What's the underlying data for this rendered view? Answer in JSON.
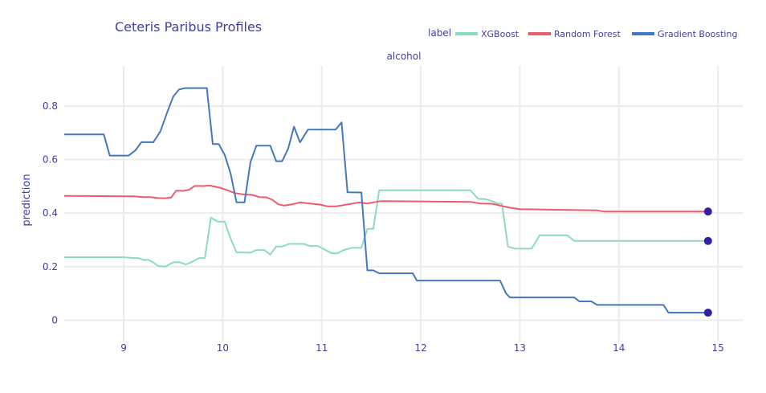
{
  "chart_data": {
    "type": "line",
    "title": "Ceteris Paribus Profiles",
    "panel_title": "alcohol",
    "xlabel": "",
    "ylabel": "prediction",
    "legend_title": "label",
    "legend_position": "top-right",
    "xlim": [
      8.4,
      15.25
    ],
    "ylim": [
      -0.08,
      0.95
    ],
    "x_ticks": [
      9,
      10,
      11,
      12,
      13,
      14,
      15
    ],
    "x_tick_labels": [
      "9",
      "10",
      "11",
      "12",
      "13",
      "14",
      "15"
    ],
    "y_ticks": [
      0,
      0.2,
      0.4,
      0.6,
      0.8
    ],
    "y_tick_labels": [
      "0",
      "0.2",
      "0.4",
      "0.6",
      "0.8"
    ],
    "grid": true,
    "colors": {
      "text": "#3f3f9f",
      "grid": "#ececec",
      "marker": "#371ea3"
    },
    "series": [
      {
        "name": "XGBoost",
        "color": "#8bdcbe",
        "points": [
          [
            8.4,
            0.235
          ],
          [
            8.8,
            0.235
          ],
          [
            9.0,
            0.235
          ],
          [
            9.1,
            0.232
          ],
          [
            9.15,
            0.232
          ],
          [
            9.2,
            0.225
          ],
          [
            9.25,
            0.225
          ],
          [
            9.3,
            0.215
          ],
          [
            9.35,
            0.202
          ],
          [
            9.42,
            0.2
          ],
          [
            9.5,
            0.216
          ],
          [
            9.57,
            0.216
          ],
          [
            9.63,
            0.208
          ],
          [
            9.7,
            0.22
          ],
          [
            9.76,
            0.232
          ],
          [
            9.82,
            0.232
          ],
          [
            9.88,
            0.383
          ],
          [
            9.95,
            0.368
          ],
          [
            10.02,
            0.368
          ],
          [
            10.08,
            0.305
          ],
          [
            10.14,
            0.253
          ],
          [
            10.2,
            0.253
          ],
          [
            10.28,
            0.252
          ],
          [
            10.34,
            0.262
          ],
          [
            10.42,
            0.262
          ],
          [
            10.48,
            0.245
          ],
          [
            10.54,
            0.275
          ],
          [
            10.6,
            0.275
          ],
          [
            10.67,
            0.285
          ],
          [
            10.82,
            0.285
          ],
          [
            10.88,
            0.277
          ],
          [
            10.96,
            0.277
          ],
          [
            11.04,
            0.262
          ],
          [
            11.1,
            0.25
          ],
          [
            11.16,
            0.25
          ],
          [
            11.22,
            0.262
          ],
          [
            11.3,
            0.27
          ],
          [
            11.4,
            0.27
          ],
          [
            11.46,
            0.34
          ],
          [
            11.52,
            0.342
          ],
          [
            11.58,
            0.485
          ],
          [
            12.5,
            0.485
          ],
          [
            12.58,
            0.453
          ],
          [
            12.65,
            0.452
          ],
          [
            12.72,
            0.445
          ],
          [
            12.78,
            0.435
          ],
          [
            12.82,
            0.435
          ],
          [
            12.88,
            0.275
          ],
          [
            12.95,
            0.267
          ],
          [
            13.12,
            0.267
          ],
          [
            13.2,
            0.317
          ],
          [
            13.48,
            0.317
          ],
          [
            13.55,
            0.296
          ],
          [
            14.9,
            0.296
          ]
        ],
        "end_value": 0.296
      },
      {
        "name": "Random Forest",
        "color": "#f05a71",
        "points": [
          [
            8.4,
            0.464
          ],
          [
            9.0,
            0.463
          ],
          [
            9.1,
            0.463
          ],
          [
            9.2,
            0.46
          ],
          [
            9.27,
            0.46
          ],
          [
            9.35,
            0.456
          ],
          [
            9.42,
            0.455
          ],
          [
            9.48,
            0.458
          ],
          [
            9.53,
            0.484
          ],
          [
            9.6,
            0.483
          ],
          [
            9.66,
            0.487
          ],
          [
            9.72,
            0.502
          ],
          [
            9.8,
            0.501
          ],
          [
            9.87,
            0.503
          ],
          [
            9.97,
            0.495
          ],
          [
            10.05,
            0.485
          ],
          [
            10.12,
            0.475
          ],
          [
            10.2,
            0.47
          ],
          [
            10.3,
            0.468
          ],
          [
            10.37,
            0.46
          ],
          [
            10.44,
            0.459
          ],
          [
            10.5,
            0.45
          ],
          [
            10.56,
            0.433
          ],
          [
            10.62,
            0.428
          ],
          [
            10.69,
            0.432
          ],
          [
            10.78,
            0.44
          ],
          [
            10.88,
            0.436
          ],
          [
            10.98,
            0.432
          ],
          [
            11.06,
            0.425
          ],
          [
            11.14,
            0.425
          ],
          [
            11.22,
            0.43
          ],
          [
            11.3,
            0.435
          ],
          [
            11.38,
            0.44
          ],
          [
            11.46,
            0.436
          ],
          [
            11.52,
            0.44
          ],
          [
            11.6,
            0.445
          ],
          [
            12.5,
            0.442
          ],
          [
            12.6,
            0.436
          ],
          [
            12.72,
            0.435
          ],
          [
            12.8,
            0.428
          ],
          [
            12.9,
            0.42
          ],
          [
            13.0,
            0.415
          ],
          [
            13.5,
            0.412
          ],
          [
            13.78,
            0.41
          ],
          [
            13.85,
            0.406
          ],
          [
            14.9,
            0.406
          ]
        ],
        "end_value": 0.406
      },
      {
        "name": "Gradient Boosting",
        "color": "#4378bf",
        "points": [
          [
            8.4,
            0.694
          ],
          [
            8.8,
            0.694
          ],
          [
            8.86,
            0.615
          ],
          [
            9.05,
            0.615
          ],
          [
            9.12,
            0.635
          ],
          [
            9.18,
            0.665
          ],
          [
            9.3,
            0.665
          ],
          [
            9.37,
            0.705
          ],
          [
            9.44,
            0.777
          ],
          [
            9.5,
            0.835
          ],
          [
            9.56,
            0.862
          ],
          [
            9.62,
            0.867
          ],
          [
            9.84,
            0.867
          ],
          [
            9.9,
            0.658
          ],
          [
            9.96,
            0.658
          ],
          [
            10.02,
            0.618
          ],
          [
            10.08,
            0.548
          ],
          [
            10.14,
            0.44
          ],
          [
            10.22,
            0.44
          ],
          [
            10.28,
            0.59
          ],
          [
            10.34,
            0.652
          ],
          [
            10.48,
            0.652
          ],
          [
            10.54,
            0.594
          ],
          [
            10.6,
            0.594
          ],
          [
            10.66,
            0.64
          ],
          [
            10.72,
            0.723
          ],
          [
            10.78,
            0.664
          ],
          [
            10.86,
            0.712
          ],
          [
            11.14,
            0.712
          ],
          [
            11.2,
            0.739
          ],
          [
            11.26,
            0.478
          ],
          [
            11.4,
            0.477
          ],
          [
            11.46,
            0.186
          ],
          [
            11.52,
            0.186
          ],
          [
            11.58,
            0.175
          ],
          [
            11.92,
            0.175
          ],
          [
            11.96,
            0.148
          ],
          [
            12.8,
            0.148
          ],
          [
            12.86,
            0.1
          ],
          [
            12.9,
            0.085
          ],
          [
            13.55,
            0.085
          ],
          [
            13.6,
            0.07
          ],
          [
            13.72,
            0.07
          ],
          [
            13.78,
            0.057
          ],
          [
            14.45,
            0.057
          ],
          [
            14.5,
            0.028
          ],
          [
            14.9,
            0.028
          ]
        ],
        "end_value": 0.028
      }
    ],
    "end_markers_x": 14.9
  }
}
